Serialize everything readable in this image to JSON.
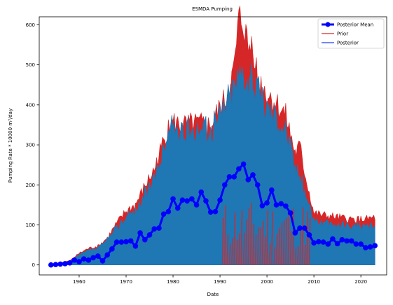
{
  "chart_data": {
    "type": "line",
    "title": "ESMDA Pumping",
    "xlabel": "Date",
    "ylabel": "Pumping Rate * 10000 m³/day",
    "xlim": [
      1951.5,
      2025.5
    ],
    "ylim": [
      -25,
      620
    ],
    "x_ticks": [
      1960,
      1970,
      1980,
      1990,
      2000,
      2010,
      2020
    ],
    "y_ticks": [
      0,
      100,
      200,
      300,
      400,
      500,
      600
    ],
    "legend": {
      "placement": "top-right",
      "entries": [
        {
          "label": "Posterior Mean",
          "color": "#0000ff",
          "style": "line-marker"
        },
        {
          "label": "Prior",
          "color": "#d62728",
          "style": "line"
        },
        {
          "label": "Posterior",
          "color": "#1f3fff",
          "style": "line"
        }
      ]
    },
    "colors": {
      "prior": "#d62728",
      "posterior_fill": "#1f77b4",
      "mean": "#0000ff"
    },
    "series": [
      {
        "name": "Posterior Mean",
        "x": [
          1954,
          1955,
          1956,
          1957,
          1958,
          1959,
          1960,
          1961,
          1962,
          1963,
          1964,
          1965,
          1966,
          1967,
          1968,
          1969,
          1970,
          1971,
          1972,
          1973,
          1974,
          1975,
          1976,
          1977,
          1978,
          1979,
          1980,
          1981,
          1982,
          1983,
          1984,
          1985,
          1986,
          1987,
          1988,
          1989,
          1990,
          1991,
          1992,
          1993,
          1994,
          1995,
          1996,
          1997,
          1998,
          1999,
          2000,
          2001,
          2002,
          2003,
          2004,
          2005,
          2006,
          2007,
          2008,
          2009,
          2010,
          2011,
          2012,
          2013,
          2014,
          2015,
          2016,
          2017,
          2018,
          2019,
          2020,
          2021,
          2022,
          2023
        ],
        "y": [
          0,
          1,
          2,
          3,
          5,
          12,
          8,
          15,
          12,
          18,
          22,
          10,
          25,
          40,
          57,
          57,
          58,
          60,
          47,
          80,
          63,
          75,
          90,
          92,
          127,
          133,
          165,
          142,
          162,
          160,
          165,
          150,
          182,
          160,
          132,
          133,
          162,
          200,
          220,
          220,
          240,
          252,
          213,
          225,
          200,
          148,
          155,
          187,
          150,
          153,
          147,
          130,
          80,
          92,
          92,
          75,
          55,
          58,
          57,
          52,
          65,
          53,
          63,
          60,
          60,
          52,
          52,
          43,
          45,
          48
        ]
      },
      {
        "name": "Prior",
        "x": [
          1954,
          1956,
          1958,
          1960,
          1962,
          1964,
          1966,
          1968,
          1970,
          1972,
          1974,
          1976,
          1978,
          1980,
          1982,
          1984,
          1986,
          1988,
          1990,
          1991,
          1992,
          1993,
          1994,
          1995,
          1996,
          1997,
          1998,
          2000,
          2002,
          2004,
          2006,
          2007,
          2008,
          2010,
          2012,
          2015,
          2018,
          2021,
          2023
        ],
        "upper": [
          0,
          5,
          10,
          28,
          40,
          45,
          65,
          100,
          130,
          145,
          190,
          230,
          300,
          345,
          335,
          340,
          340,
          335,
          380,
          395,
          430,
          470,
          590,
          590,
          520,
          545,
          450,
          415,
          390,
          360,
          270,
          285,
          225,
          125,
          120,
          115,
          110,
          110,
          115
        ],
        "lower": [
          0,
          0,
          0,
          0,
          0,
          0,
          0,
          0,
          0,
          0,
          0,
          0,
          0,
          0,
          0,
          0,
          0,
          0,
          0,
          0,
          0,
          0,
          0,
          0,
          0,
          0,
          0,
          0,
          0,
          0,
          0,
          0,
          0,
          0,
          0,
          0,
          0,
          0,
          0
        ]
      },
      {
        "name": "Posterior",
        "x": [
          1954,
          1956,
          1958,
          1960,
          1962,
          1964,
          1966,
          1968,
          1970,
          1972,
          1974,
          1976,
          1978,
          1980,
          1982,
          1984,
          1986,
          1988,
          1990,
          1991,
          1992,
          1993,
          1994,
          1995,
          1996,
          1997,
          1998,
          2000,
          2002,
          2004,
          2006,
          2007,
          2008,
          2010,
          2012,
          2015,
          2018,
          2021,
          2023
        ],
        "upper": [
          0,
          4,
          8,
          24,
          35,
          40,
          60,
          90,
          115,
          130,
          170,
          200,
          280,
          340,
          310,
          330,
          330,
          320,
          360,
          385,
          410,
          430,
          455,
          475,
          445,
          440,
          420,
          380,
          360,
          330,
          235,
          215,
          180,
          110,
          100,
          95,
          95,
          90,
          95
        ],
        "lower": [
          0,
          0,
          0,
          0,
          0,
          0,
          0,
          0,
          0,
          0,
          0,
          0,
          0,
          0,
          0,
          0,
          0,
          0,
          0,
          0,
          0,
          0,
          0,
          0,
          0,
          0,
          0,
          0,
          0,
          0,
          0,
          0,
          0,
          0,
          0,
          0,
          0,
          0,
          0
        ]
      }
    ]
  }
}
